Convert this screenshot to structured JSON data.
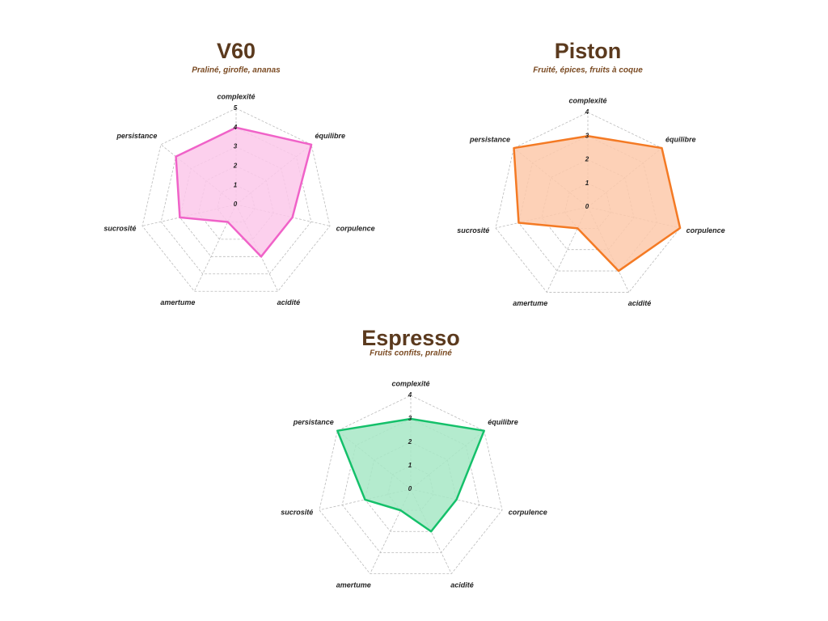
{
  "chart_data": [
    {
      "type": "radar",
      "title": "V60",
      "subtitle": "Praliné, girofle, ananas",
      "categories": [
        "complexité",
        "équilibre",
        "corpulence",
        "acidité",
        "amertume",
        "sucrosité",
        "persistance"
      ],
      "series": [
        {
          "name": "V60",
          "color": "#f062c8",
          "fill": "#fbc8ea",
          "values": [
            4,
            5,
            3,
            3,
            1,
            3,
            4
          ]
        }
      ],
      "rlim": [
        0,
        5
      ],
      "rticks": [
        0,
        1,
        2,
        3,
        4,
        5
      ],
      "grid": true
    },
    {
      "type": "radar",
      "title": "Piston",
      "subtitle": "Fruité, épices, fruits à coque",
      "categories": [
        "complexité",
        "équilibre",
        "corpulence",
        "acidité",
        "amertume",
        "sucrosité",
        "persistance"
      ],
      "series": [
        {
          "name": "Piston",
          "color": "#f47a24",
          "fill": "#fdc9aa",
          "values": [
            3,
            4,
            4,
            3,
            1,
            3,
            4
          ]
        }
      ],
      "rlim": [
        0,
        4
      ],
      "rticks": [
        0,
        1,
        2,
        3,
        4
      ],
      "grid": true
    },
    {
      "type": "radar",
      "title": "Espresso",
      "subtitle": "Fruits confits, praliné",
      "categories": [
        "complexité",
        "équilibre",
        "corpulence",
        "acidité",
        "amertume",
        "sucrosité",
        "persistance"
      ],
      "series": [
        {
          "name": "Espresso",
          "color": "#14c06a",
          "fill": "#a7e8c6",
          "values": [
            3,
            4,
            2,
            2,
            1,
            2,
            4
          ]
        }
      ],
      "rlim": [
        0,
        4
      ],
      "rticks": [
        0,
        1,
        2,
        3,
        4
      ],
      "grid": true
    }
  ]
}
